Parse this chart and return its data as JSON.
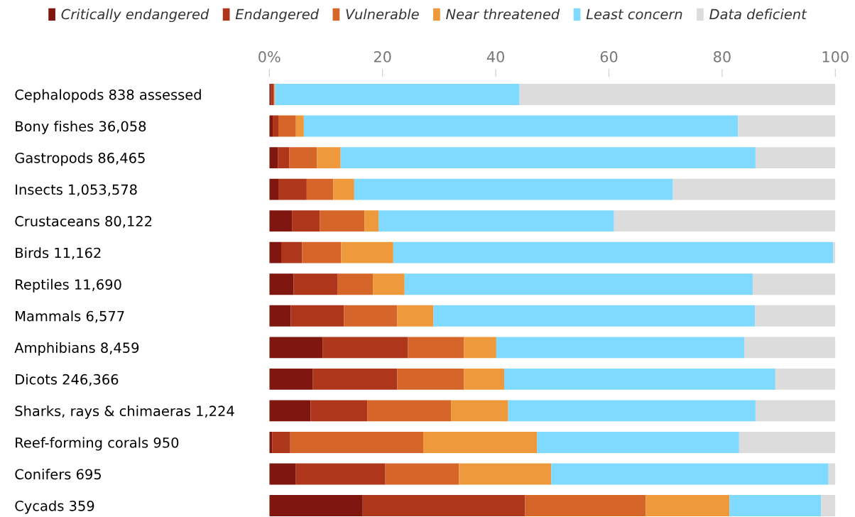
{
  "chart_data": {
    "type": "bar",
    "orientation": "horizontal",
    "stacked": true,
    "legend": "top",
    "grid": false,
    "categories": [
      "Cephalopods 838 assessed",
      "Bony fishes 36,058",
      "Gastropods 86,465",
      "Insects 1,053,578",
      "Crustaceans 80,122",
      "Birds 11,162",
      "Reptiles 11,690",
      "Mammals 6,577",
      "Amphibians 8,459",
      "Dicots 246,366",
      "Sharks, rays & chimaeras 1,224",
      "Reef-forming corals 950",
      "Conifers 695",
      "Cycads 359"
    ],
    "xlim": [
      0,
      100
    ],
    "xticks": [
      {
        "value": 0,
        "label": "0%"
      },
      20,
      40,
      60,
      80,
      100
    ],
    "series": [
      {
        "name": "Critically endangered",
        "color": "#7f1710",
        "values": [
          0.3,
          0.6,
          1.5,
          1.6,
          4.0,
          2.1,
          4.3,
          3.8,
          9.4,
          7.7,
          7.3,
          0.5,
          4.7,
          16.5
        ]
      },
      {
        "name": "Endangered",
        "color": "#ae361b",
        "values": [
          0.5,
          1.0,
          2.0,
          5.0,
          4.9,
          3.7,
          7.8,
          9.4,
          15.1,
          14.9,
          10.0,
          3.2,
          15.8,
          28.7
        ]
      },
      {
        "name": "Vulnerable",
        "color": "#d6652a",
        "values": [
          0.1,
          3.1,
          4.9,
          4.7,
          7.9,
          6.9,
          6.2,
          9.4,
          9.9,
          11.8,
          14.8,
          23.5,
          13.0,
          21.3
        ]
      },
      {
        "name": "Near threatened",
        "color": "#ee9a3c",
        "values": [
          0.1,
          1.4,
          4.2,
          3.7,
          2.5,
          9.2,
          5.6,
          6.4,
          5.7,
          7.1,
          10.1,
          20.1,
          16.3,
          14.8
        ]
      },
      {
        "name": "Least concern",
        "color": "#80d9fe",
        "values": [
          43.2,
          76.7,
          73.3,
          56.3,
          41.6,
          77.7,
          61.5,
          56.8,
          43.8,
          47.9,
          43.7,
          35.7,
          49.0,
          16.2
        ]
      },
      {
        "name": "Data deficient",
        "color": "#dcdcdc",
        "values": [
          55.8,
          17.2,
          14.1,
          28.7,
          39.1,
          0.4,
          14.6,
          14.2,
          16.1,
          10.6,
          14.1,
          17.0,
          1.2,
          2.5
        ]
      }
    ]
  }
}
